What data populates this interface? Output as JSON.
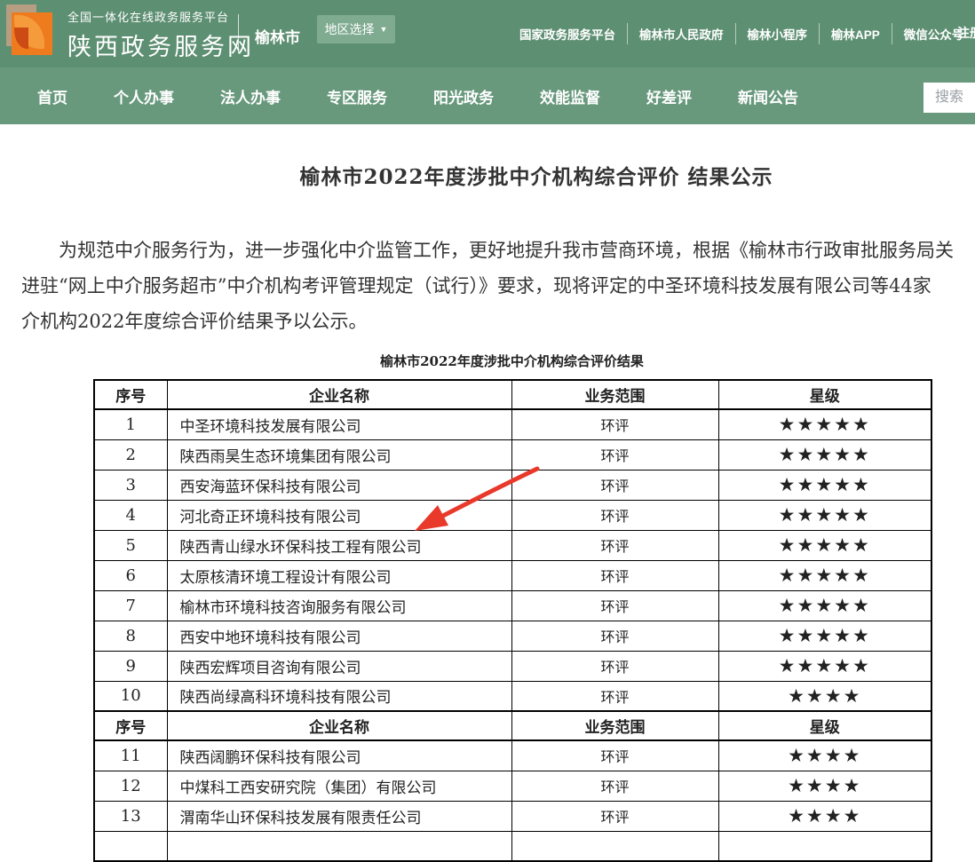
{
  "header": {
    "platform_label": "全国一体化在线政务服务平台",
    "site_name": "陕西政务服务网",
    "city": "榆林市",
    "region_select_label": "地区选择",
    "links": [
      "国家政务服务平台",
      "榆林市人民政府",
      "榆林小程序",
      "榆林APP",
      "微信公众号"
    ],
    "register_label": "注册"
  },
  "nav": {
    "items": [
      "首页",
      "个人办事",
      "法人办事",
      "专区服务",
      "阳光政务",
      "效能监督",
      "好差评",
      "新闻公告"
    ],
    "search_placeholder": "搜索"
  },
  "article": {
    "title": "榆林市2022年度涉批中介机构综合评价 结果公示",
    "lines": [
      "为规范中介服务行为，进一步强化中介监管工作，更好地提升我市营商环境，根据《榆林市行政审批服务局关",
      "进驻“网上中介服务超市”中介机构考评管理规定（试行）》要求，现将评定的中圣环境科技发展有限公司等44家",
      "介机构2022年度综合评价结果予以公示。"
    ],
    "table_caption": "榆林市2022年度涉批中介机构综合评价结果"
  },
  "table": {
    "star_char": "★",
    "sections": [
      {
        "headers": [
          "序号",
          "企业名称",
          "业务范围",
          "星级"
        ],
        "rows": [
          {
            "no": "1",
            "company": "中圣环境科技发展有限公司",
            "scope": "环评",
            "stars": 5
          },
          {
            "no": "2",
            "company": "陕西雨昊生态环境集团有限公司",
            "scope": "环评",
            "stars": 5
          },
          {
            "no": "3",
            "company": "西安海蓝环保科技有限公司",
            "scope": "环评",
            "stars": 5
          },
          {
            "no": "4",
            "company": "河北奇正环境科技有限公司",
            "scope": "环评",
            "stars": 5
          },
          {
            "no": "5",
            "company": "陕西青山绿水环保科技工程有限公司",
            "scope": "环评",
            "stars": 5
          },
          {
            "no": "6",
            "company": "太原核清环境工程设计有限公司",
            "scope": "环评",
            "stars": 5
          },
          {
            "no": "7",
            "company": "榆林市环境科技咨询服务有限公司",
            "scope": "环评",
            "stars": 5
          },
          {
            "no": "8",
            "company": "西安中地环境科技有限公司",
            "scope": "环评",
            "stars": 5
          },
          {
            "no": "9",
            "company": "陕西宏辉项目咨询有限公司",
            "scope": "环评",
            "stars": 5
          },
          {
            "no": "10",
            "company": "陕西尚绿高科环境科技有限公司",
            "scope": "环评",
            "stars": 4
          }
        ]
      },
      {
        "headers": [
          "序号",
          "企业名称",
          "业务范围",
          "星级"
        ],
        "rows": [
          {
            "no": "11",
            "company": "陕西阔鹏环保科技有限公司",
            "scope": "环评",
            "stars": 4
          },
          {
            "no": "12",
            "company": "中煤科工西安研究院（集团）有限公司",
            "scope": "环评",
            "stars": 4
          },
          {
            "no": "13",
            "company": "渭南华山环保科技发展有限责任公司",
            "scope": "环评",
            "stars": 4
          }
        ]
      }
    ]
  },
  "colors": {
    "header_green": "#5d8f72",
    "nav_green": "#68997d",
    "region_button_green": "#7fab91",
    "logo_tan": "#b59e82",
    "logo_orange": "#ee7c1f",
    "arrow_red": "#e8392b",
    "star_black": "#000000"
  }
}
